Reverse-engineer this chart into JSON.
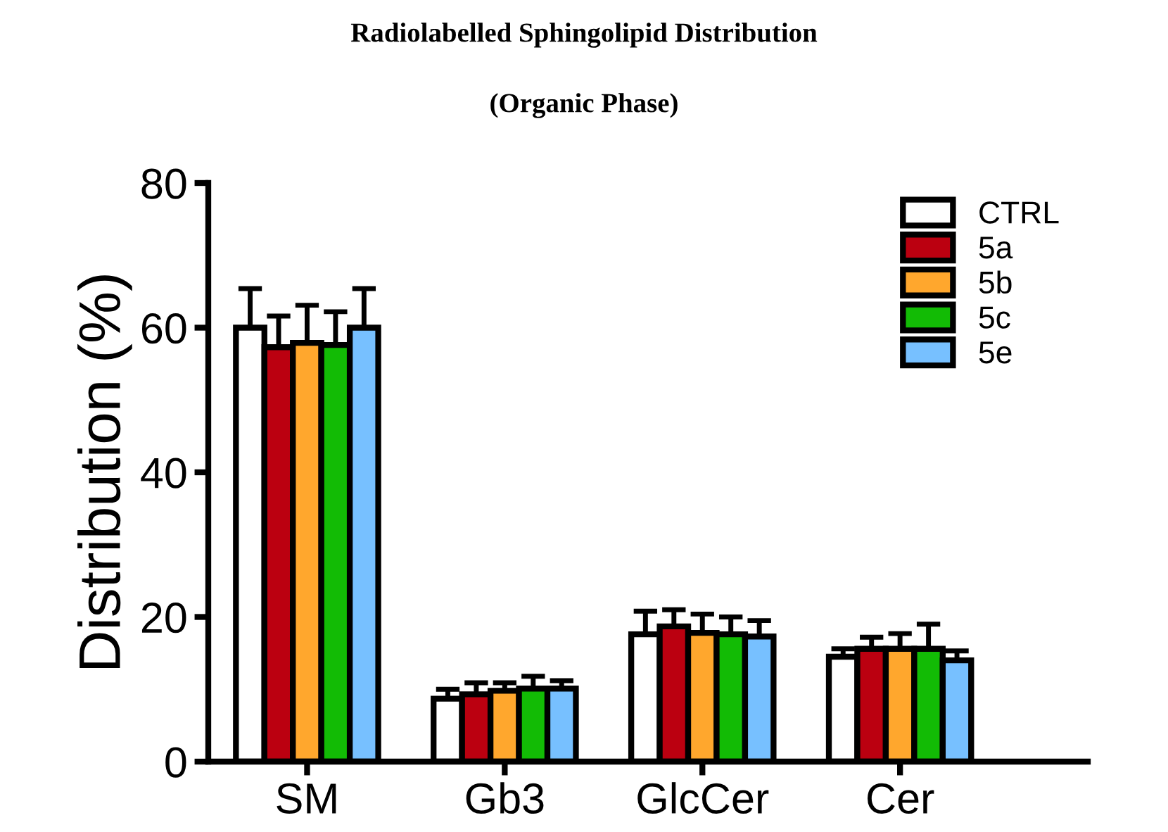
{
  "chart_data": {
    "type": "bar",
    "title": "Radiolabelled Sphingolipid Distribution",
    "subtitle": "(Organic Phase)",
    "ylabel": "Distribution (%)",
    "categories": [
      "SM",
      "Gb3",
      "GlcCer",
      "Cer"
    ],
    "series": [
      {
        "name": "CTRL",
        "color": "#ffffff",
        "values": [
          60.0,
          8.7,
          17.6,
          14.5
        ],
        "errors": [
          [
            60.0,
            65.4
          ],
          [
            8.7,
            10.0
          ],
          [
            17.6,
            20.8
          ],
          [
            14.5,
            15.6
          ]
        ]
      },
      {
        "name": "5a",
        "color": "#bb0010",
        "values": [
          57.3,
          9.3,
          18.7,
          15.6
        ],
        "errors": [
          [
            57.3,
            61.6
          ],
          [
            9.3,
            10.9
          ],
          [
            18.7,
            21.0
          ],
          [
            15.6,
            17.2
          ]
        ]
      },
      {
        "name": "5b",
        "color": "#ffa72d",
        "values": [
          57.9,
          9.8,
          17.8,
          15.6
        ],
        "errors": [
          [
            57.9,
            63.1
          ],
          [
            9.8,
            10.9
          ],
          [
            17.8,
            20.4
          ],
          [
            15.6,
            17.7
          ]
        ]
      },
      {
        "name": "5c",
        "color": "#12bb05",
        "values": [
          57.6,
          10.1,
          17.6,
          15.6
        ],
        "errors": [
          [
            57.6,
            62.2
          ],
          [
            10.1,
            11.8
          ],
          [
            17.6,
            20.0
          ],
          [
            15.6,
            19.0
          ]
        ]
      },
      {
        "name": "5e",
        "color": "#77c0ff",
        "values": [
          60.0,
          10.1,
          17.3,
          14.0
        ],
        "errors": [
          [
            60.0,
            65.4
          ],
          [
            10.1,
            11.2
          ],
          [
            17.3,
            19.5
          ],
          [
            14.0,
            15.3
          ]
        ]
      }
    ],
    "ylim": [
      0,
      80
    ],
    "yticks": [
      0,
      20,
      40,
      60,
      80
    ],
    "grid": false,
    "legend": "top right"
  }
}
